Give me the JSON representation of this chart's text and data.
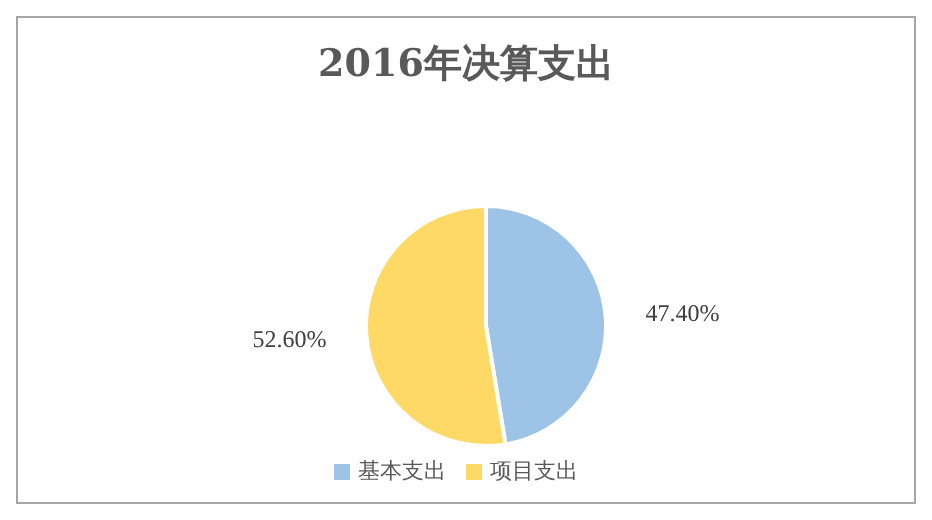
{
  "chart_data": {
    "type": "pie",
    "title": "2016年决算支出",
    "categories": [
      "基本支出",
      "项目支出"
    ],
    "values": [
      47.4,
      52.6
    ],
    "colors": [
      "#9dc3e6",
      "#ffd966"
    ],
    "value_labels": [
      "47.40%",
      "52.60%"
    ],
    "legend": "bottom"
  }
}
